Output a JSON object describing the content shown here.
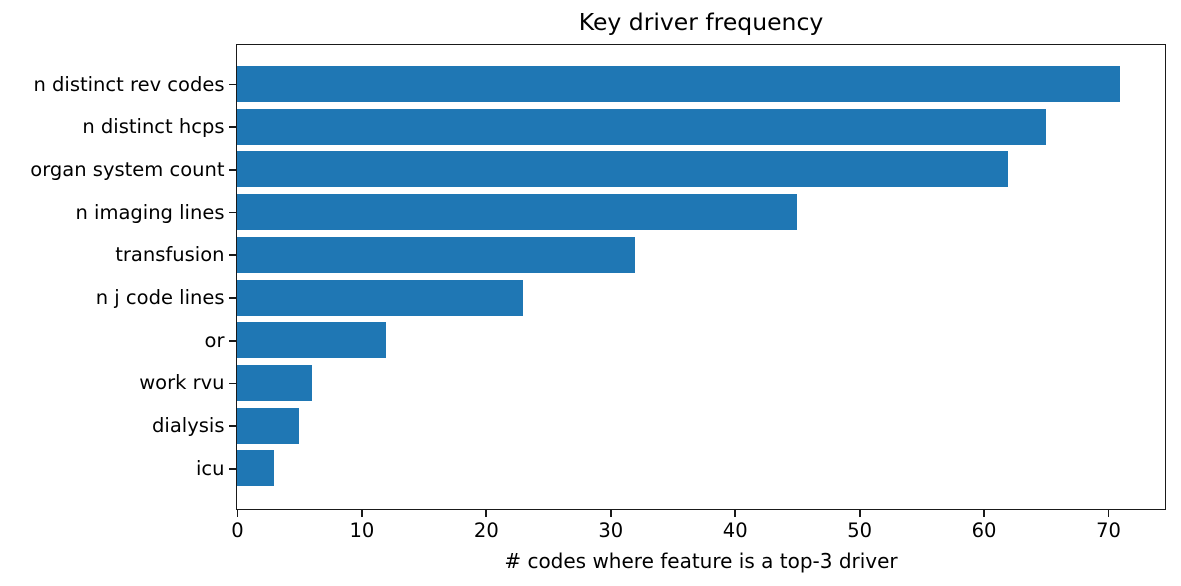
{
  "chart_data": {
    "type": "bar",
    "orientation": "horizontal",
    "title": "Key driver frequency",
    "xlabel": "# codes where feature is a top-3 driver",
    "ylabel": "",
    "categories": [
      "n distinct rev codes",
      "n distinct hcps",
      "organ system count",
      "n imaging lines",
      "transfusion",
      "n j code lines",
      "or",
      "work rvu",
      "dialysis",
      "icu"
    ],
    "values": [
      71,
      65,
      62,
      45,
      32,
      23,
      12,
      6,
      5,
      3
    ],
    "xlim": [
      0,
      74.5
    ],
    "xticks": [
      0,
      10,
      20,
      30,
      40,
      50,
      60,
      70
    ],
    "bar_color": "#1f77b4",
    "axis_color": "#1a1a1a",
    "background": "#ffffff",
    "grid": false,
    "legend": false
  }
}
